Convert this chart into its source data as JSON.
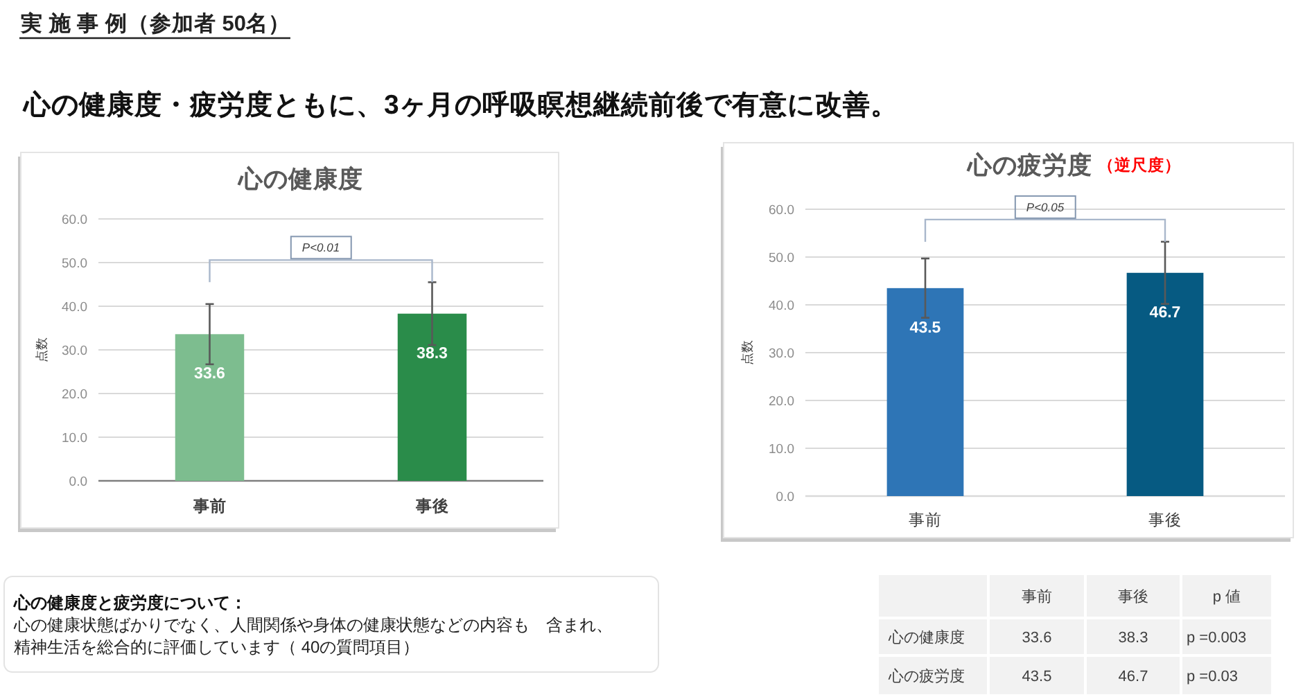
{
  "chart_data": [
    {
      "type": "other",
      "subtitle": "実 施 事 例（参加者 50名）",
      "title": "心の健康度・疲労度ともに、3ヶ月の呼吸瞑想継続前後で有意に改善。"
    },
    {
      "type": "bar",
      "title": "心の健康度",
      "ylabel": "点数",
      "categories": [
        "事前",
        "事後"
      ],
      "values": [
        33.6,
        38.3
      ],
      "colors": [
        "#7dbd8f",
        "#2a8c4a"
      ],
      "errors": [
        6.9,
        7.2
      ],
      "data_labels": true,
      "ylim": [
        0,
        60
      ],
      "yticks": [
        {
          "value": 0,
          "label": "0.0"
        },
        {
          "value": 10,
          "label": "10.0"
        },
        {
          "value": 20,
          "label": "20.0"
        },
        {
          "value": 30,
          "label": "30.0"
        },
        {
          "value": 40,
          "label": "40.0"
        },
        {
          "value": 50,
          "label": "50.0"
        },
        {
          "value": 60,
          "label": "60.0"
        }
      ],
      "grid": "y",
      "annotations": [
        "P<0.01"
      ]
    },
    {
      "type": "bar",
      "title": "心の疲労度",
      "subtitle": "（逆尺度）",
      "ylabel": "点数",
      "categories": [
        "事前",
        "事後"
      ],
      "values": [
        43.5,
        46.7
      ],
      "colors": [
        "#2e75b6",
        "#065a82"
      ],
      "errors": [
        6.2,
        6.5
      ],
      "data_labels": true,
      "ylim": [
        0,
        60
      ],
      "yticks": [
        {
          "value": 0,
          "label": "0.0"
        },
        {
          "value": 10,
          "label": "10.0"
        },
        {
          "value": 20,
          "label": "20.0"
        },
        {
          "value": 30,
          "label": "30.0"
        },
        {
          "value": 40,
          "label": "40.0"
        },
        {
          "value": 50,
          "label": "50.0"
        },
        {
          "value": 60,
          "label": "60.0"
        }
      ],
      "grid": "y",
      "annotations": [
        "P<0.05"
      ]
    },
    {
      "type": "other",
      "title": "心の健康度と疲労度について：",
      "annotations": [
        "心の健康状態ばかりでなく、人間関係や身体の健康状態などの内容も　含まれ、",
        "精神生活を総合的に評価しています（ 40の質問項目）"
      ]
    },
    {
      "type": "other",
      "categories": [
        "事前",
        "事後",
        "p 値"
      ],
      "y_categories": [
        "心の健康度",
        "心の疲労度"
      ],
      "cell_labels": [
        [
          "33.6",
          "38.3",
          "p =0.003"
        ],
        [
          "43.5",
          "46.7",
          "p =0.03"
        ]
      ]
    }
  ]
}
